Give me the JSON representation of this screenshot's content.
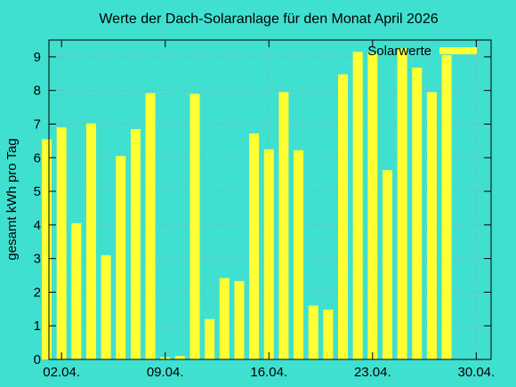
{
  "chart_data": {
    "type": "bar",
    "title": "Werte der Dach-Solaranlage für den Monat April 2026",
    "xlabel": "",
    "ylabel": "gesamt kWh pro Tag",
    "ylim": [
      0,
      9.5
    ],
    "yticks": [
      0,
      1,
      2,
      3,
      4,
      5,
      6,
      7,
      8,
      9
    ],
    "xlim": [
      1.15,
      31.0
    ],
    "xticks": [
      {
        "x": 2,
        "label": "02.04."
      },
      {
        "x": 9,
        "label": "09.04."
      },
      {
        "x": 16,
        "label": "16.04."
      },
      {
        "x": 23,
        "label": "23.04."
      },
      {
        "x": 30,
        "label": "30.04."
      }
    ],
    "grid": true,
    "legend_position": "top-right",
    "bar_color": "#ffff33",
    "series": [
      {
        "name": "Solarwerte",
        "x": [
          1,
          2,
          3,
          4,
          5,
          6,
          7,
          8,
          9,
          10,
          11,
          12,
          13,
          14,
          15,
          16,
          17,
          18,
          19,
          20,
          21,
          22,
          23,
          24,
          25,
          26,
          27,
          28,
          29,
          30
        ],
        "values": [
          6.55,
          6.9,
          4.05,
          7.02,
          3.1,
          6.05,
          6.85,
          7.92,
          0.07,
          0.1,
          7.9,
          1.2,
          2.42,
          2.33,
          6.72,
          6.25,
          7.95,
          6.22,
          1.6,
          1.48,
          8.48,
          9.15,
          9.12,
          5.63,
          9.25,
          8.68,
          7.95,
          9.05,
          0,
          0
        ]
      }
    ]
  }
}
